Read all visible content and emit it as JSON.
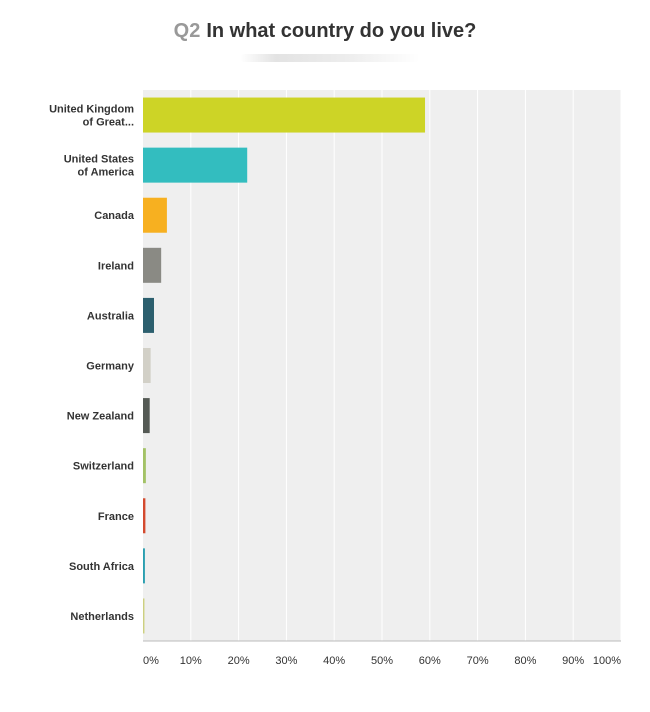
{
  "question": {
    "number": "Q2",
    "text": "In what country do you live?"
  },
  "chart_data": {
    "type": "bar",
    "orientation": "horizontal",
    "categories": [
      [
        "United Kingdom",
        "of Great..."
      ],
      [
        "United States",
        "of America"
      ],
      [
        "Canada"
      ],
      [
        "Ireland"
      ],
      [
        "Australia"
      ],
      [
        "Germany"
      ],
      [
        "New Zealand"
      ],
      [
        "Switzerland"
      ],
      [
        "France"
      ],
      [
        "South Africa"
      ],
      [
        "Netherlands"
      ]
    ],
    "values": [
      59,
      21.8,
      5,
      3.8,
      2.3,
      1.6,
      1.4,
      0.6,
      0.5,
      0.4,
      0.3
    ],
    "colors": [
      "#cdd426",
      "#33bdbf",
      "#f7b020",
      "#8a8a84",
      "#2c5f6e",
      "#d2d0c7",
      "#555a55",
      "#a3c266",
      "#d44a2e",
      "#2a9fb0",
      "#cdd080"
    ],
    "xticks": [
      "0%",
      "10%",
      "20%",
      "30%",
      "40%",
      "50%",
      "60%",
      "70%",
      "80%",
      "90%",
      "100%"
    ],
    "xlim": [
      0,
      100
    ],
    "grid": true,
    "title": "In what country do you live?"
  }
}
